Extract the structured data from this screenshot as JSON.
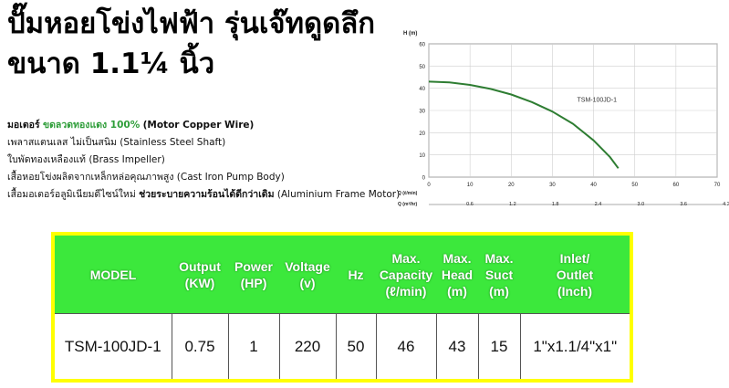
{
  "title_line1": "ปั๊มหอยโข่งไฟฟ้า รุ่นเจ๊ทดูดลึก",
  "title_line2": "ขนาด 1.1¼ นิ้ว",
  "features": [
    {
      "th": "มอเตอร์",
      "highlight": "ขดลวดทองแดง 100%",
      "en": "(Motor Copper Wire)"
    },
    {
      "th": "เพลาสแตนเลส ไม่เป็นสนิม",
      "en": "(Stainless Steel Shaft)"
    },
    {
      "th": "ใบพัดทองเหลืองแท้",
      "en": "(Brass Impeller)"
    },
    {
      "th": "เสื้อหอยโข่งผลิตจากเหล็กหล่อคุณภาพสูง",
      "en": "(Cast Iron Pump Body)"
    },
    {
      "th": "เสื้อมอเตอร์อลูมิเนียมดีไซน์ใหม่",
      "bold": "ช่วยระบายความร้อนได้ดีกว่าเดิม",
      "en": "(Aluminium Frame Motor)"
    }
  ],
  "chart_data": {
    "type": "line",
    "ylabel": "H (m)",
    "xlabel": "Q (ℓ/min)",
    "x2label": "Q (m³/hr)",
    "ylim": [
      0,
      60
    ],
    "xlim": [
      0,
      70
    ],
    "yticks": [
      "0",
      "10",
      "20",
      "30",
      "40",
      "50",
      "60"
    ],
    "xticks": [
      "0",
      "10",
      "20",
      "30",
      "40",
      "50",
      "60",
      "70"
    ],
    "x2ticks": [
      "0.6",
      "1.2",
      "1.8",
      "2.4",
      "3.0",
      "3.6",
      "4.2"
    ],
    "grid": true,
    "series": [
      {
        "name": "TSM-100JD-1",
        "color": "#2e7d32",
        "x": [
          0,
          5,
          10,
          15,
          20,
          25,
          30,
          35,
          40,
          44,
          46
        ],
        "y": [
          43,
          42.6,
          41.5,
          39.7,
          37.2,
          33.8,
          29.5,
          24,
          16.5,
          9,
          4
        ]
      }
    ]
  },
  "table": {
    "headers": [
      [
        "MODEL"
      ],
      [
        "Output",
        "(KW)"
      ],
      [
        "Power",
        "(HP)"
      ],
      [
        "Voltage",
        "(v)"
      ],
      [
        "Hz"
      ],
      [
        "Max.",
        "Capacity",
        "(ℓ/min)"
      ],
      [
        "Max.",
        "Head",
        "(m)"
      ],
      [
        "Max.",
        "Suct",
        "(m)"
      ],
      [
        "Inlet/",
        "Outlet",
        "(Inch)"
      ]
    ],
    "row": [
      "TSM-100JD-1",
      "0.75",
      "1",
      "220",
      "50",
      "46",
      "43",
      "15",
      "1\"x1.1/4\"x1\""
    ]
  },
  "colors": {
    "header_green": "#3ce83c",
    "frame_yellow": "#ffff00",
    "curve": "#2e7d32",
    "highlight_green": "#2f9e3a"
  }
}
